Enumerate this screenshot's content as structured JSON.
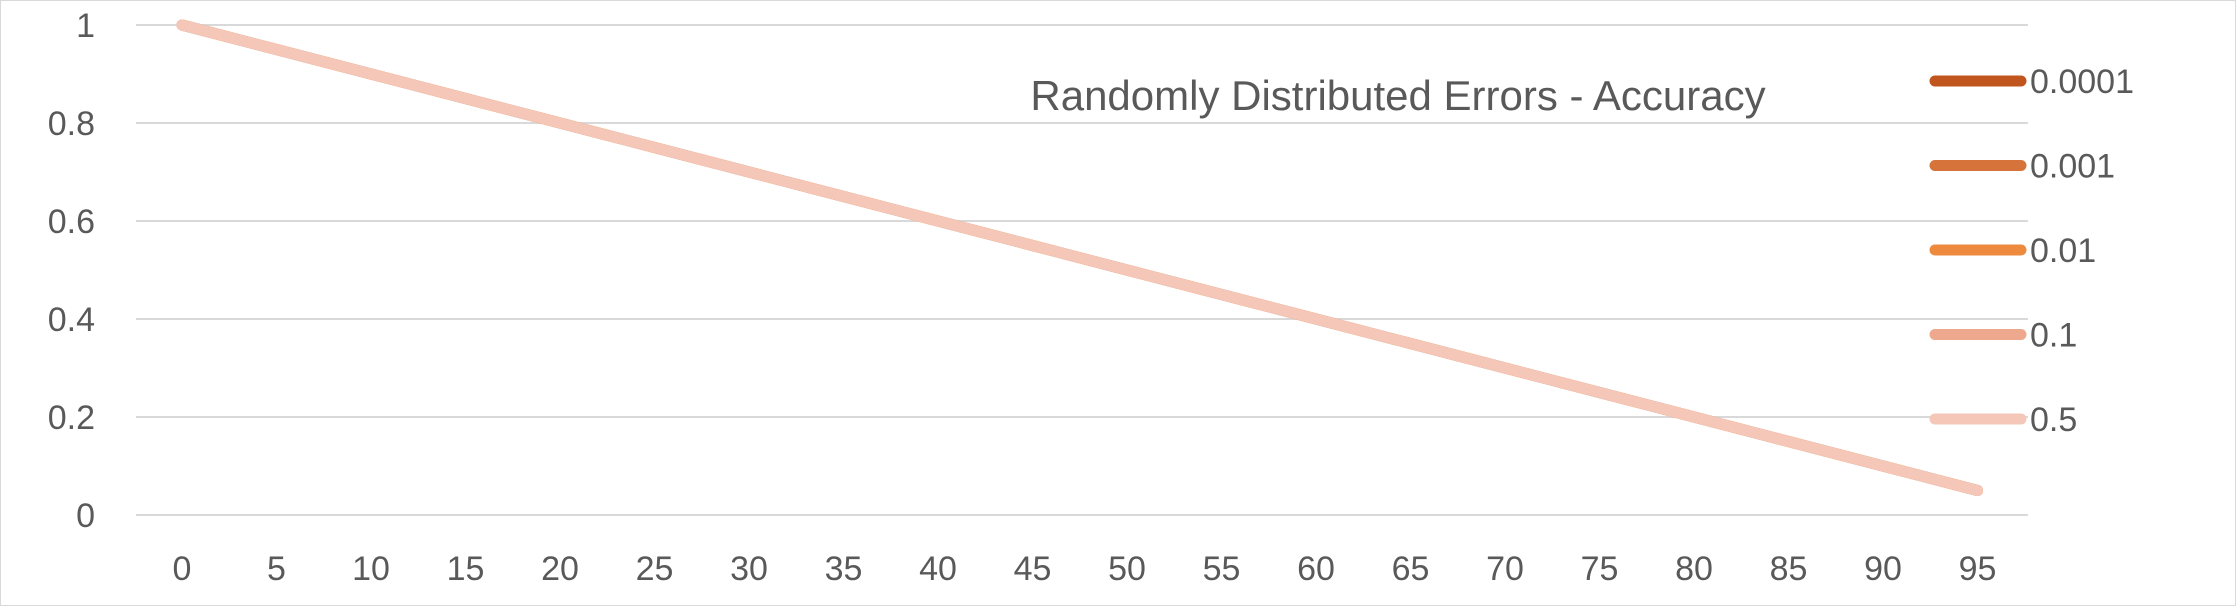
{
  "chart_data": {
    "type": "line",
    "title": "Randomly Distributed Errors - Accuracy",
    "xlabel": "",
    "ylabel": "",
    "x": [
      0,
      5,
      10,
      15,
      20,
      25,
      30,
      35,
      40,
      45,
      50,
      55,
      60,
      65,
      70,
      75,
      80,
      85,
      90,
      95
    ],
    "ylim": [
      0,
      1
    ],
    "yticks": [
      "0",
      "0.2",
      "0.4",
      "0.6",
      "0.8",
      "1"
    ],
    "grid": true,
    "legend_position": "right",
    "series": [
      {
        "name": "0.0001",
        "color": "#C0561E",
        "values": [
          1,
          0.95,
          0.9,
          0.85,
          0.8,
          0.75,
          0.7,
          0.65,
          0.6,
          0.55,
          0.5,
          0.45,
          0.4,
          0.35,
          0.3,
          0.25,
          0.2,
          0.15,
          0.1,
          0.05
        ]
      },
      {
        "name": "0.001",
        "color": "#D5733A",
        "values": [
          1,
          0.95,
          0.9,
          0.85,
          0.8,
          0.75,
          0.7,
          0.65,
          0.6,
          0.55,
          0.5,
          0.45,
          0.4,
          0.35,
          0.3,
          0.25,
          0.2,
          0.15,
          0.1,
          0.05
        ]
      },
      {
        "name": "0.01",
        "color": "#ED8A3D",
        "values": [
          1,
          0.95,
          0.9,
          0.85,
          0.8,
          0.75,
          0.7,
          0.65,
          0.6,
          0.55,
          0.5,
          0.45,
          0.4,
          0.35,
          0.3,
          0.25,
          0.2,
          0.15,
          0.1,
          0.05
        ]
      },
      {
        "name": "0.1",
        "color": "#EDA88D",
        "values": [
          1,
          0.95,
          0.9,
          0.85,
          0.8,
          0.75,
          0.7,
          0.65,
          0.6,
          0.55,
          0.5,
          0.45,
          0.4,
          0.35,
          0.3,
          0.25,
          0.2,
          0.15,
          0.1,
          0.05
        ]
      },
      {
        "name": "0.5",
        "color": "#F5C7B8",
        "values": [
          1,
          0.95,
          0.9,
          0.85,
          0.8,
          0.75,
          0.7,
          0.65,
          0.6,
          0.55,
          0.5,
          0.45,
          0.4,
          0.35,
          0.3,
          0.25,
          0.2,
          0.15,
          0.1,
          0.05
        ]
      }
    ]
  }
}
